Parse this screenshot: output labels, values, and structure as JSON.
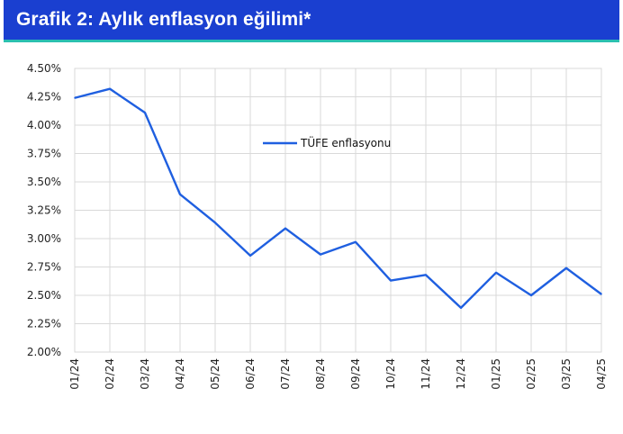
{
  "header": {
    "title": "Grafik 2: Aylık enflasyon eğilimi*"
  },
  "colors": {
    "header_bg": "#1a3fd0",
    "header_accent": "#2bbfb0",
    "series": "#1f5fe0",
    "grid": "#d9d9d9"
  },
  "chart_data": {
    "type": "line",
    "title": "",
    "xlabel": "",
    "ylabel": "",
    "categories": [
      "01/24",
      "02/24",
      "03/24",
      "04/24",
      "05/24",
      "06/24",
      "07/24",
      "08/24",
      "09/24",
      "10/24",
      "11/24",
      "12/24",
      "01/25",
      "02/25",
      "03/25",
      "04/25"
    ],
    "series": [
      {
        "name": "TÜFE enflasyonu",
        "values": [
          4.24,
          4.32,
          4.11,
          3.39,
          3.14,
          2.85,
          3.09,
          2.86,
          2.97,
          2.63,
          2.68,
          2.39,
          2.7,
          2.5,
          2.74,
          2.51
        ]
      }
    ],
    "ylim": [
      2.0,
      4.5
    ],
    "yticks": [
      "4.50%",
      "4.25%",
      "4.00%",
      "3.75%",
      "3.50%",
      "3.25%",
      "3.00%",
      "2.75%",
      "2.50%",
      "2.25%",
      "2.00%"
    ],
    "ytick_values": [
      4.5,
      4.25,
      4.0,
      3.75,
      3.5,
      3.25,
      3.0,
      2.75,
      2.5,
      2.25,
      2.0
    ],
    "grid": true,
    "legend": "top-center"
  }
}
